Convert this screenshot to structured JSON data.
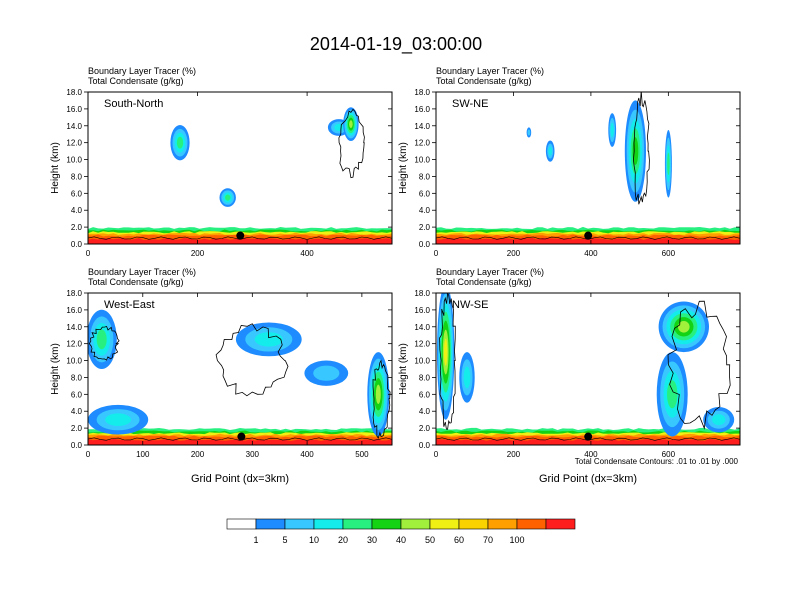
{
  "title": "2014-01-19_03:00:00",
  "palette": [
    "#ffffff",
    "#1e8cff",
    "#38c8ff",
    "#14ecec",
    "#28f080",
    "#14d214",
    "#a0f03c",
    "#f0f014",
    "#fad200",
    "#ffa000",
    "#ff6000",
    "#ff1e1e"
  ],
  "colorbar_labels": [
    "1",
    "5",
    "10",
    "20",
    "30",
    "40",
    "50",
    "60",
    "70",
    "100"
  ],
  "contour_note": "Total Condensate Contours: .01 to .01 by .000",
  "chart_data": [
    {
      "type": "heatmap",
      "panel_label": "South-North",
      "fields": [
        "Boundary Layer Tracer   (%)",
        "Total Condensate   (g/kg)"
      ],
      "ylabel": "Height (km)",
      "xlabel": "",
      "xlim": [
        0,
        555
      ],
      "ylim": [
        0,
        18
      ],
      "xticks": [
        0,
        200,
        400
      ],
      "xticklabels": [
        "0",
        "200",
        "400"
      ],
      "yticks": [
        0,
        2,
        4,
        6,
        8,
        10,
        12,
        14,
        16,
        18
      ],
      "yticklabels": [
        "0.0",
        "2.0",
        "4.0",
        "6.0",
        "8.0",
        "10.0",
        "12.0",
        "14.0",
        "16.0",
        "18.0"
      ],
      "marker": {
        "x": 278,
        "y": 1.0
      },
      "blobs": [
        {
          "x": 168,
          "y": 12.0,
          "w": 35,
          "h": 4.2,
          "peak": 4
        },
        {
          "x": 255,
          "y": 5.5,
          "w": 30,
          "h": 2.2,
          "peak": 4
        },
        {
          "x": 458,
          "y": 13.8,
          "w": 40,
          "h": 2.0,
          "peak": 3
        },
        {
          "x": 480,
          "y": 14.2,
          "w": 28,
          "h": 4.0,
          "peak": 6
        }
      ],
      "contours": [
        {
          "x": 480,
          "y": 12.0,
          "w": 45,
          "h": 7.5
        }
      ]
    },
    {
      "type": "heatmap",
      "panel_label": "SW-NE",
      "fields": [
        "Boundary Layer Tracer   (%)",
        "Total Condensate   (g/kg)"
      ],
      "ylabel": "Height (km)",
      "xlabel": "",
      "xlim": [
        0,
        785
      ],
      "ylim": [
        0,
        18
      ],
      "xticks": [
        0,
        200,
        400,
        600
      ],
      "xticklabels": [
        "0",
        "200",
        "400",
        "600"
      ],
      "yticks": [
        0,
        2,
        4,
        6,
        8,
        10,
        12,
        14,
        16,
        18
      ],
      "yticklabels": [
        "0.0",
        "2.0",
        "4.0",
        "6.0",
        "8.0",
        "10.0",
        "12.0",
        "14.0",
        "16.0",
        "18.0"
      ],
      "marker": {
        "x": 393,
        "y": 1.0
      },
      "blobs": [
        {
          "x": 515,
          "y": 11.0,
          "w": 55,
          "h": 12.0,
          "peak": 5
        },
        {
          "x": 600,
          "y": 9.5,
          "w": 18,
          "h": 8.0,
          "peak": 4
        },
        {
          "x": 455,
          "y": 13.5,
          "w": 20,
          "h": 4.0,
          "peak": 3
        },
        {
          "x": 295,
          "y": 11.0,
          "w": 22,
          "h": 2.5,
          "peak": 3
        },
        {
          "x": 240,
          "y": 13.2,
          "w": 12,
          "h": 1.2,
          "peak": 2
        }
      ],
      "contours": [
        {
          "x": 530,
          "y": 11.0,
          "w": 40,
          "h": 13.0
        }
      ]
    },
    {
      "type": "heatmap",
      "panel_label": "West-East",
      "fields": [
        "Boundary Layer Tracer   (%)",
        "Total Condensate   (g/kg)"
      ],
      "ylabel": "Height (km)",
      "xlabel": "Grid Point (dx=3km)",
      "xlim": [
        0,
        555
      ],
      "ylim": [
        0,
        18
      ],
      "xticks": [
        0,
        100,
        200,
        300,
        400,
        500
      ],
      "xticklabels": [
        "0",
        "100",
        "200",
        "300",
        "400",
        "500"
      ],
      "yticks": [
        0,
        2,
        4,
        6,
        8,
        10,
        12,
        14,
        16,
        18
      ],
      "yticklabels": [
        "0.0",
        "2.0",
        "4.0",
        "6.0",
        "8.0",
        "10.0",
        "12.0",
        "14.0",
        "16.0",
        "18.0"
      ],
      "marker": {
        "x": 280,
        "y": 1.0
      },
      "blobs": [
        {
          "x": 25,
          "y": 12.5,
          "w": 55,
          "h": 7.0,
          "peak": 4
        },
        {
          "x": 330,
          "y": 12.5,
          "w": 120,
          "h": 4.0,
          "peak": 3
        },
        {
          "x": 435,
          "y": 8.5,
          "w": 80,
          "h": 3.0,
          "peak": 2
        },
        {
          "x": 530,
          "y": 6.0,
          "w": 40,
          "h": 10.0,
          "peak": 6
        },
        {
          "x": 55,
          "y": 3.0,
          "w": 110,
          "h": 3.5,
          "peak": 3
        }
      ],
      "contours": [
        {
          "x": 300,
          "y": 10.0,
          "w": 120,
          "h": 8.0
        },
        {
          "x": 30,
          "y": 12.0,
          "w": 50,
          "h": 4.0
        },
        {
          "x": 535,
          "y": 5.5,
          "w": 30,
          "h": 9.0
        }
      ]
    },
    {
      "type": "heatmap",
      "panel_label": "NW-SE",
      "fields": [
        "Boundary Layer Tracer   (%)",
        "Total Condensate   (g/kg)"
      ],
      "ylabel": "Height (km)",
      "xlabel": "Grid Point (dx=3km)",
      "xlim": [
        0,
        785
      ],
      "ylim": [
        0,
        18
      ],
      "xticks": [
        0,
        200,
        400,
        600
      ],
      "xticklabels": [
        "0",
        "200",
        "400",
        "600"
      ],
      "yticks": [
        0,
        2,
        4,
        6,
        8,
        10,
        12,
        14,
        16,
        18
      ],
      "yticklabels": [
        "0.0",
        "2.0",
        "4.0",
        "6.0",
        "8.0",
        "10.0",
        "12.0",
        "14.0",
        "16.0",
        "18.0"
      ],
      "marker": {
        "x": 393,
        "y": 1.0
      },
      "blobs": [
        {
          "x": 25,
          "y": 11.0,
          "w": 45,
          "h": 16.0,
          "peak": 7
        },
        {
          "x": 80,
          "y": 8.0,
          "w": 40,
          "h": 6.0,
          "peak": 3
        },
        {
          "x": 640,
          "y": 14.0,
          "w": 130,
          "h": 6.0,
          "peak": 6
        },
        {
          "x": 610,
          "y": 6.0,
          "w": 80,
          "h": 10.0,
          "peak": 4
        },
        {
          "x": 730,
          "y": 3.0,
          "w": 80,
          "h": 3.0,
          "peak": 3
        }
      ],
      "contours": [
        {
          "x": 30,
          "y": 10.0,
          "w": 40,
          "h": 16.0
        },
        {
          "x": 680,
          "y": 9.5,
          "w": 150,
          "h": 14.0
        }
      ]
    }
  ]
}
